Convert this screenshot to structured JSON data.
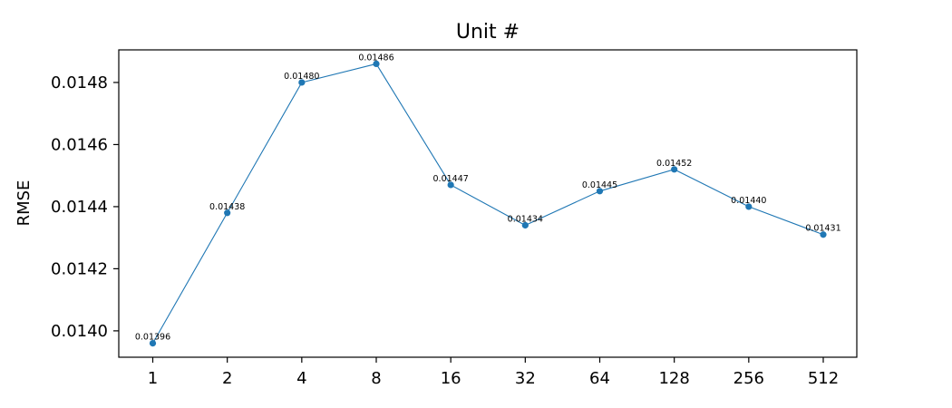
{
  "chart_data": {
    "type": "line",
    "title": "Unit #",
    "xlabel": "",
    "ylabel": "RMSE",
    "categories": [
      "1",
      "2",
      "4",
      "8",
      "16",
      "32",
      "64",
      "128",
      "256",
      "512"
    ],
    "series": [
      {
        "values": [
          0.01396,
          0.01438,
          0.0148,
          0.01486,
          0.01447,
          0.01434,
          0.01445,
          0.01452,
          0.0144,
          0.01431
        ],
        "labels": [
          "0.01396",
          "0.01438",
          "0.01480",
          "0.01486",
          "0.01447",
          "0.01434",
          "0.01445",
          "0.01452",
          "0.01440",
          "0.01431"
        ]
      }
    ],
    "ylim": [
      0.013915,
      0.014905
    ],
    "yticks": [
      0.014,
      0.0142,
      0.0144,
      0.0146,
      0.0148
    ],
    "ytick_labels": [
      "0.0140",
      "0.0142",
      "0.0144",
      "0.0146",
      "0.0148"
    ],
    "grid": false,
    "color": "#1f77b4"
  }
}
